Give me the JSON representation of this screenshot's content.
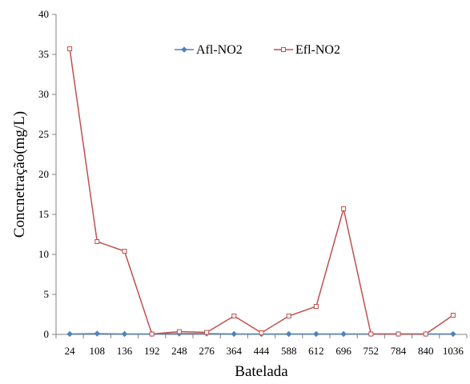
{
  "chart_data": {
    "type": "line",
    "title": "",
    "xlabel": "Batelada",
    "ylabel": "Concnetração(mg/L)",
    "categories": [
      "24",
      "108",
      "136",
      "192",
      "248",
      "276",
      "364",
      "444",
      "588",
      "612",
      "696",
      "752",
      "784",
      "840",
      "1036"
    ],
    "ylim": [
      0,
      40
    ],
    "yticks": [
      0,
      5,
      10,
      15,
      20,
      25,
      30,
      35,
      40
    ],
    "grid": false,
    "legend_position": "top-center",
    "series": [
      {
        "name": "Afl-NO2",
        "color": "#4F81BD",
        "marker": "diamond",
        "values": [
          0.05,
          0.1,
          0.05,
          0.05,
          0.1,
          0.1,
          0.05,
          0.05,
          0.05,
          0.05,
          0.05,
          0.05,
          0.05,
          0.05,
          0.05
        ]
      },
      {
        "name": "Efl-NO2",
        "color": "#C0504D",
        "marker": "square",
        "values": [
          35.7,
          11.6,
          10.4,
          0.05,
          0.35,
          0.25,
          2.3,
          0.2,
          2.3,
          3.5,
          15.7,
          0.05,
          0.05,
          0.05,
          2.4
        ]
      }
    ]
  }
}
